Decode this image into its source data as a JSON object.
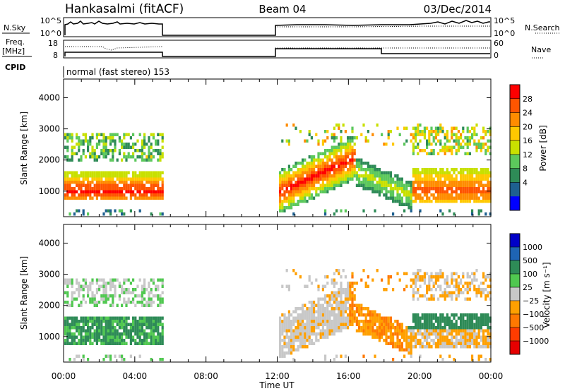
{
  "header": {
    "station": "Hankasalmi (fitACF)",
    "beam": "Beam 04",
    "date": "03/Dec/2014"
  },
  "status_panels": {
    "nsky_label": "N.Sky",
    "nsky_ticks": [
      "10^5",
      "10^0"
    ],
    "nsearch_label": "N.Search",
    "nsearch_ticks": [
      "10^5",
      "10^0"
    ],
    "freq_label_1": "Freq.",
    "freq_label_2": "[MHz]",
    "freq_ticks": [
      "18",
      "8"
    ],
    "nave_label": "Nave",
    "nave_ticks": [
      "60",
      "0"
    ],
    "cpid_label": "CPID",
    "cpid_text": "normal (fast stereo) 153"
  },
  "chart_data": [
    {
      "type": "heatmap",
      "quantity": "Power",
      "ylabel": "Slant Range [km]",
      "xlabel": "Time UT",
      "x_ticks": [
        "00:00",
        "04:00",
        "08:00",
        "12:00",
        "16:00",
        "20:00",
        "00:00"
      ],
      "x_range_hours": [
        0,
        24
      ],
      "y_ticks": [
        1000,
        2000,
        3000,
        4000
      ],
      "ylim": [
        180,
        4600
      ],
      "data_gap_hours": [
        5.5,
        12.0
      ],
      "colorbar": {
        "label": "Power [dB]",
        "ticks": [
          "28",
          "24",
          "20",
          "16",
          "12",
          "8",
          "4"
        ],
        "colors": [
          "#ff0000",
          "#ff5500",
          "#ff8c00",
          "#ffc800",
          "#c8e000",
          "#5cc85c",
          "#2e8b57",
          "#1e6090",
          "#0000ff"
        ]
      }
    },
    {
      "type": "heatmap",
      "quantity": "Velocity",
      "ylabel": "Slant Range [km]",
      "xlabel": "Time UT",
      "x_ticks": [
        "00:00",
        "04:00",
        "08:00",
        "12:00",
        "16:00",
        "20:00",
        "00:00"
      ],
      "x_range_hours": [
        0,
        24
      ],
      "y_ticks": [
        1000,
        2000,
        3000,
        4000
      ],
      "ylim": [
        180,
        4600
      ],
      "data_gap_hours": [
        5.5,
        12.0
      ],
      "colorbar": {
        "label": "Velocity [m s⁻¹]",
        "ticks": [
          "1000",
          "500",
          "100",
          "25",
          "−25",
          "−100",
          "−500",
          "−1000"
        ],
        "colors": [
          "#0000c8",
          "#1e64b4",
          "#2e8b57",
          "#50c850",
          "#c8c8c8",
          "#ffa000",
          "#ff7800",
          "#ff3c00",
          "#e60000"
        ]
      }
    }
  ],
  "footer": {
    "xlabel": "Time UT"
  }
}
